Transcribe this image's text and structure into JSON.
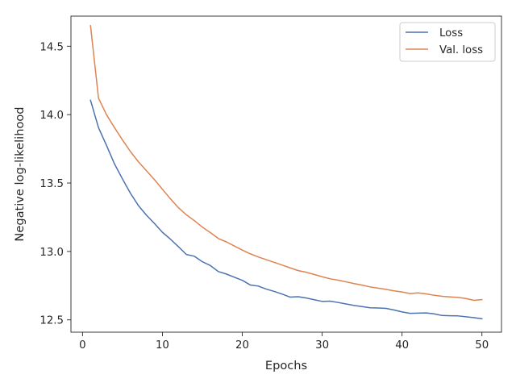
{
  "chart_data": {
    "type": "line",
    "title": "",
    "xlabel": "Epochs",
    "ylabel": "Negative log-likelihood",
    "xlim": [
      -1.45,
      52.45
    ],
    "ylim": [
      12.41,
      14.72
    ],
    "xticks": [
      0,
      10,
      20,
      30,
      40,
      50
    ],
    "yticks": [
      12.5,
      13.0,
      13.5,
      14.0,
      14.5
    ],
    "ytick_labels": [
      "12.5",
      "13.0",
      "13.5",
      "14.0",
      "14.5"
    ],
    "grid": false,
    "legend_position": "top-right",
    "x": [
      1,
      2,
      3,
      4,
      5,
      6,
      7,
      8,
      9,
      10,
      11,
      12,
      13,
      14,
      15,
      16,
      17,
      18,
      19,
      20,
      21,
      22,
      23,
      24,
      25,
      26,
      27,
      28,
      29,
      30,
      31,
      32,
      33,
      34,
      35,
      36,
      37,
      38,
      39,
      40,
      41,
      42,
      43,
      44,
      45,
      46,
      47,
      48,
      49,
      50
    ],
    "series": [
      {
        "name": "Loss",
        "color": "#4c72b0",
        "values": [
          14.105,
          13.905,
          13.775,
          13.64,
          13.53,
          13.425,
          13.335,
          13.265,
          13.205,
          13.14,
          13.09,
          13.035,
          12.978,
          12.965,
          12.925,
          12.897,
          12.853,
          12.835,
          12.812,
          12.789,
          12.755,
          12.747,
          12.725,
          12.708,
          12.688,
          12.666,
          12.669,
          12.66,
          12.647,
          12.635,
          12.637,
          12.627,
          12.616,
          12.605,
          12.597,
          12.588,
          12.587,
          12.584,
          12.572,
          12.558,
          12.548,
          12.549,
          12.551,
          12.544,
          12.532,
          12.53,
          12.529,
          12.523,
          12.516,
          12.508
        ]
      },
      {
        "name": "Val. loss",
        "color": "#dd8452",
        "values": [
          14.65,
          14.12,
          14.0,
          13.905,
          13.815,
          13.73,
          13.655,
          13.59,
          13.525,
          13.455,
          13.385,
          13.32,
          13.268,
          13.225,
          13.178,
          13.138,
          13.095,
          13.07,
          13.04,
          13.01,
          12.983,
          12.96,
          12.94,
          12.92,
          12.9,
          12.88,
          12.86,
          12.848,
          12.832,
          12.815,
          12.8,
          12.79,
          12.778,
          12.765,
          12.754,
          12.741,
          12.732,
          12.723,
          12.712,
          12.704,
          12.692,
          12.697,
          12.69,
          12.68,
          12.672,
          12.668,
          12.664,
          12.656,
          12.643,
          12.648
        ]
      }
    ]
  }
}
